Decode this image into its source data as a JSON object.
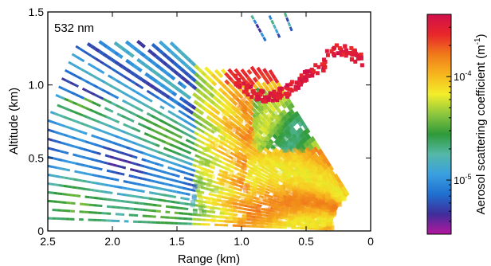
{
  "chart_data": {
    "type": "heatmap",
    "annotation": "532 nm",
    "xlabel": "Range (km)",
    "ylabel": "Altitude (km)",
    "xlim": [
      2.5,
      0
    ],
    "ylim": [
      0,
      1.5
    ],
    "x_ticks": [
      2.5,
      2.0,
      1.5,
      1.0,
      0.5,
      0
    ],
    "x_tick_labels": [
      "2.5",
      "2.0",
      "1.5",
      "1.0",
      "0.5",
      "0"
    ],
    "y_ticks": [
      0,
      0.5,
      1.0,
      1.5
    ],
    "y_tick_labels": [
      "0",
      "0.5",
      "1.0",
      "1.5"
    ],
    "colorbar": {
      "label_main": "Aerosol scattering coefficient (m",
      "label_exp": "-1",
      "label_close": ")",
      "scale": "log",
      "range": [
        3e-06,
        0.0004
      ],
      "ticks": [
        {
          "value": 1e-05,
          "base": "10",
          "exp": "-5"
        },
        {
          "value": 0.0001,
          "base": "10",
          "exp": "-4"
        }
      ],
      "colors": [
        "#b5179e",
        "#3f2d9a",
        "#1f6fd0",
        "#3aa0e0",
        "#55b8a8",
        "#2f9a3a",
        "#8cc63f",
        "#f2ee2a",
        "#f7b51e",
        "#f07a1a",
        "#e8262b",
        "#d0104a"
      ]
    },
    "features": {
      "beam_directions_from_lidar_deg": "approx 8 to 60, about 40 sweeps",
      "clear_region_near_origin_km": 0.3
    }
  }
}
